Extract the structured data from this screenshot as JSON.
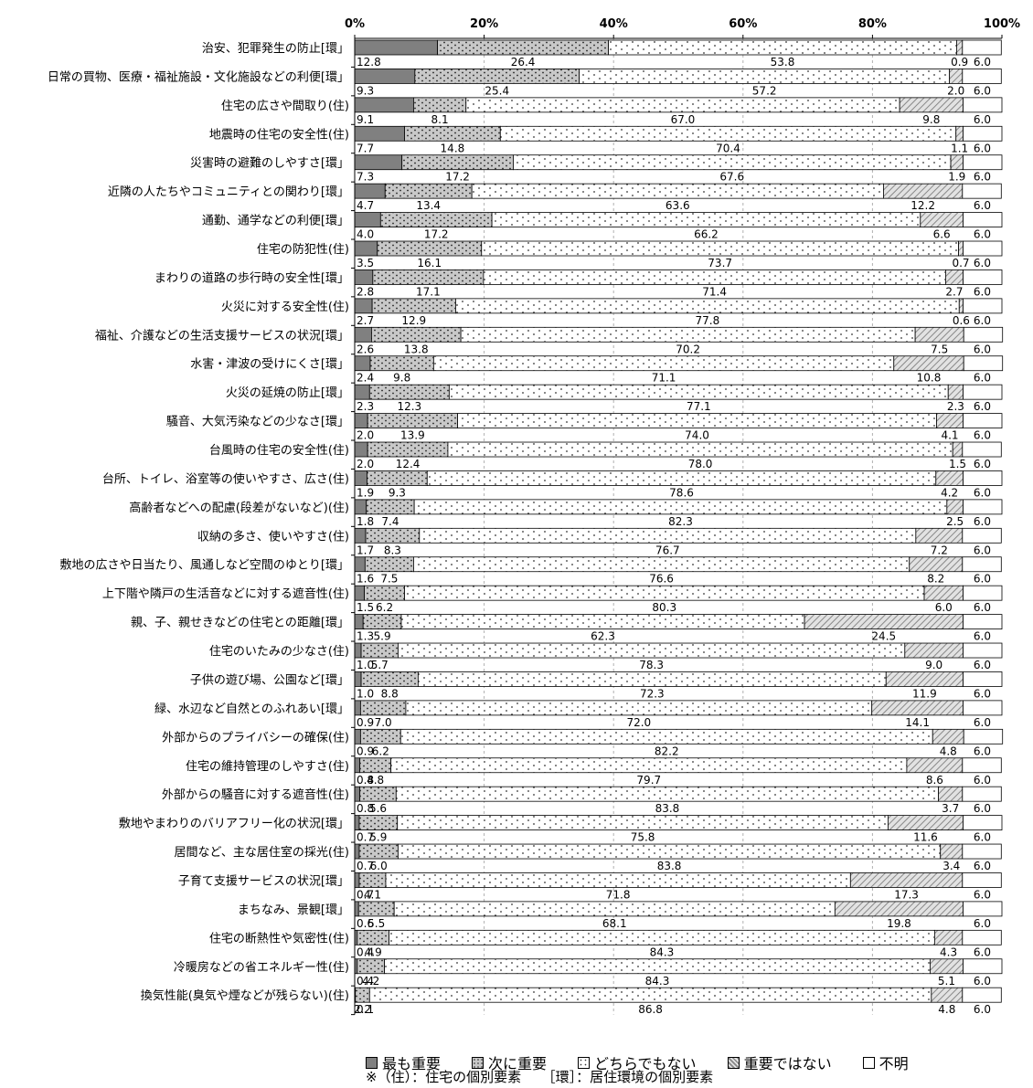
{
  "chart_data": {
    "type": "bar",
    "stacked": true,
    "orientation": "horizontal",
    "xlim": [
      0,
      100
    ],
    "x_ticks": [
      "0%",
      "20%",
      "40%",
      "60%",
      "80%",
      "100%"
    ],
    "grid": true,
    "legend_position": "bottom",
    "categories": [
      "治安、犯罪発生の防止[環」",
      "日常の買物、医療・福祉施設・文化施設などの利便[環」",
      "住宅の広さや間取り(住)",
      "地震時の住宅の安全性(住)",
      "災害時の避難のしやすさ[環」",
      "近隣の人たちやコミュニティとの関わり[環」",
      "通勤、通学などの利便[環」",
      "住宅の防犯性(住)",
      "まわりの道路の歩行時の安全性[環」",
      "火災に対する安全性(住)",
      "福祉、介護などの生活支援サービスの状況[環」",
      "水害・津波の受けにくさ[環」",
      "火災の延焼の防止[環」",
      "騒音、大気汚染などの少なさ[環」",
      "台風時の住宅の安全性(住)",
      "台所、トイレ、浴室等の使いやすさ、広さ(住)",
      "高齢者などへの配慮(段差がないなど)(住)",
      "収納の多さ、使いやすさ(住)",
      "敷地の広さや日当たり、風通しなど空間のゆとり[環」",
      "上下階や隣戸の生活音などに対する遮音性(住)",
      "親、子、親せきなどの住宅との距離[環」",
      "住宅のいたみの少なさ(住)",
      "子供の遊び場、公園など[環」",
      "緑、水辺など自然とのふれあい[環」",
      "外部からのプライバシーの確保(住)",
      "住宅の維持管理のしやすさ(住)",
      "外部からの騒音に対する遮音性(住)",
      "敷地やまわりのバリアフリー化の状況[環」",
      "居間など、主な居住室の採光(住)",
      "子育て支援サービスの状況[環」",
      "まちなみ、景観[環」",
      "住宅の断熱性や気密性(住)",
      "冷暖房などの省エネルギー性(住)",
      "換気性能(臭気や煙などが残らない)(住)"
    ],
    "series": [
      {
        "name": "最も重要",
        "color": "#808080",
        "pattern": "solid",
        "values": [
          12.8,
          9.3,
          9.1,
          7.7,
          7.3,
          4.7,
          4.0,
          3.5,
          2.8,
          2.7,
          2.6,
          2.4,
          2.3,
          2.0,
          2.0,
          1.9,
          1.8,
          1.7,
          1.6,
          1.5,
          1.3,
          1.0,
          1.0,
          0.9,
          0.9,
          0.8,
          0.8,
          0.7,
          0.7,
          0.7,
          0.6,
          0.4,
          0.4,
          0.1
        ]
      },
      {
        "name": "次に重要",
        "color": "#c8c8c8",
        "pattern": "dots",
        "values": [
          26.4,
          25.4,
          8.1,
          14.8,
          17.2,
          13.4,
          17.2,
          16.1,
          17.1,
          12.9,
          13.8,
          9.8,
          12.3,
          13.9,
          12.4,
          9.3,
          7.4,
          8.3,
          7.5,
          6.2,
          5.9,
          5.7,
          8.8,
          7.0,
          6.2,
          4.8,
          5.6,
          5.9,
          6.0,
          4.1,
          5.5,
          4.9,
          4.2,
          2.2
        ]
      },
      {
        "name": "どちらでもない",
        "color": "#ffffff",
        "pattern": "sparse",
        "values": [
          53.8,
          57.2,
          67.0,
          70.4,
          67.6,
          63.6,
          66.2,
          73.7,
          71.4,
          77.8,
          70.2,
          71.1,
          77.1,
          74.0,
          78.0,
          78.6,
          82.3,
          76.7,
          76.6,
          80.3,
          62.3,
          78.3,
          72.3,
          72.0,
          82.2,
          79.7,
          83.8,
          75.8,
          83.8,
          71.8,
          68.1,
          84.3,
          84.3,
          86.8
        ]
      },
      {
        "name": "重要ではない",
        "color": "#d0d0d0",
        "pattern": "hatch",
        "values": [
          0.9,
          2.0,
          9.8,
          1.1,
          1.9,
          12.2,
          6.6,
          0.7,
          2.7,
          0.6,
          7.5,
          10.8,
          2.3,
          4.1,
          1.5,
          4.2,
          2.5,
          7.2,
          8.2,
          6.0,
          24.5,
          9.0,
          11.9,
          14.1,
          4.8,
          8.6,
          3.7,
          11.6,
          3.4,
          17.3,
          19.8,
          4.3,
          5.1,
          4.8
        ]
      },
      {
        "name": "不明",
        "color": "#ffffff",
        "pattern": "none",
        "values": [
          6.0,
          6.0,
          6.0,
          6.0,
          6.0,
          6.0,
          6.0,
          6.0,
          6.0,
          6.0,
          6.0,
          6.0,
          6.0,
          6.0,
          6.0,
          6.0,
          6.0,
          6.0,
          6.0,
          6.0,
          6.0,
          6.0,
          6.0,
          6.0,
          6.0,
          6.0,
          6.0,
          6.0,
          6.0,
          6.0,
          6.0,
          6.0,
          6.0,
          6.0
        ]
      }
    ],
    "value_labels": [
      [
        "12.8",
        "26.4",
        "53.8",
        "0.9",
        "6.0"
      ],
      [
        "9.3",
        "25.4",
        "57.2",
        "2.0",
        "6.0"
      ],
      [
        "9.1",
        "8.1",
        "67.0",
        "9.8",
        "6.0"
      ],
      [
        "7.7",
        "14.8",
        "70.4",
        "1.1",
        "6.0"
      ],
      [
        "7.3",
        "17.2",
        "67.6",
        "1.9",
        "6.0"
      ],
      [
        "4.7",
        "13.4",
        "63.6",
        "12.2",
        "6.0"
      ],
      [
        "4.0",
        "17.2",
        "66.2",
        "6.6",
        "6.0"
      ],
      [
        "3.5",
        "16.1",
        "73.7",
        "0.7",
        "6.0"
      ],
      [
        "2.8",
        "17.1",
        "71.4",
        "2.7",
        "6.0"
      ],
      [
        "2.7",
        "12.9",
        "77.8",
        "0.6",
        "6.0"
      ],
      [
        "2.6",
        "13.8",
        "70.2",
        "7.5",
        "6.0"
      ],
      [
        "2.4",
        "9.8",
        "71.1",
        "10.8",
        "6.0"
      ],
      [
        "2.3",
        "12.3",
        "77.1",
        "2.3",
        "6.0"
      ],
      [
        "2.0",
        "13.9",
        "74.0",
        "4.1",
        "6.0"
      ],
      [
        "2.0",
        "12.4",
        "78.0",
        "1.5",
        "6.0"
      ],
      [
        "1.9",
        "9.3",
        "78.6",
        "4.2",
        "6.0"
      ],
      [
        "1.8",
        "7.4",
        "82.3",
        "2.5",
        "6.0"
      ],
      [
        "1.7",
        "8.3",
        "76.7",
        "7.2",
        "6.0"
      ],
      [
        "1.6",
        "7.5",
        "76.6",
        "8.2",
        "6.0"
      ],
      [
        "1.5",
        "6.2",
        "80.3",
        "6.0",
        "6.0"
      ],
      [
        "1.3",
        "5.9",
        "62.3",
        "24.5",
        "6.0"
      ],
      [
        "1.0",
        "5.7",
        "78.3",
        "9.0",
        "6.0"
      ],
      [
        "1.0",
        "8.8",
        "72.3",
        "11.9",
        "6.0"
      ],
      [
        "0.9",
        "7.0",
        "72.0",
        "14.1",
        "6.0"
      ],
      [
        "0.9",
        "6.2",
        "82.2",
        "4.8",
        "6.0"
      ],
      [
        "0.8",
        "4.8",
        "79.7",
        "8.6",
        "6.0"
      ],
      [
        "0.8",
        "5.6",
        "83.8",
        "3.7",
        "6.0"
      ],
      [
        "0.7",
        "5.9",
        "75.8",
        "11.6",
        "6.0"
      ],
      [
        "0.7",
        "6.0",
        "83.8",
        "3.4",
        "6.0"
      ],
      [
        "0.7",
        "4.1",
        "71.8",
        "17.3",
        "6.0"
      ],
      [
        "0.6",
        "5.5",
        "68.1",
        "19.8",
        "6.0"
      ],
      [
        "0.4",
        "4.9",
        "84.3",
        "4.3",
        "6.0"
      ],
      [
        "0.4",
        "4.2",
        "84.3",
        "5.1",
        "6.0"
      ],
      [
        "0.1",
        "2.2",
        "86.8",
        "4.8",
        "6.0"
      ]
    ],
    "legend": [
      "最も重要",
      "次に重要",
      "どちらでもない",
      "重要ではない",
      "不明"
    ],
    "footnote": "※（住）：住宅の個別要素　　［環］：居住環境の個別要素"
  }
}
